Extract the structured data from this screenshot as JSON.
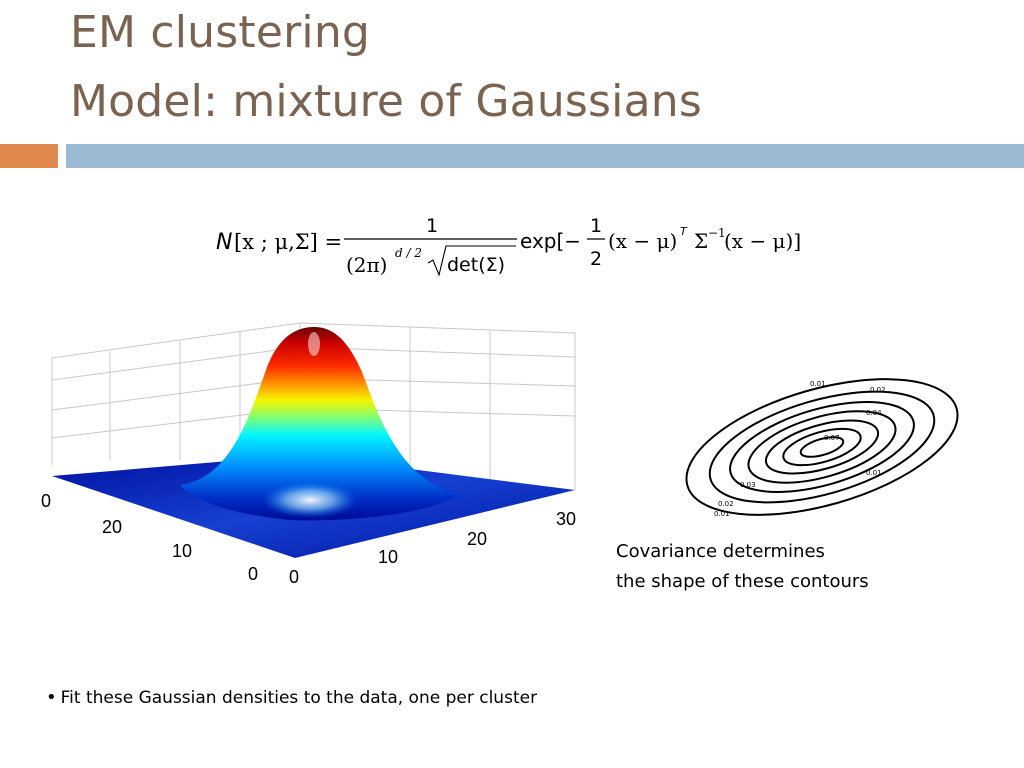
{
  "slide": {
    "title_line1": "EM clustering",
    "title_line2": "Model: mixture of Gaussians",
    "accent_colors": {
      "orange": "#df8a4c",
      "blue": "#9cbad3",
      "title": "#7a6350"
    }
  },
  "formula": {
    "lhs_N": "N",
    "lhs_args": "[x ; μ,Σ] =",
    "numerator": "1",
    "denominator_left": "(2π)",
    "denominator_exp": "d / 2",
    "denominator_det": "det(Σ)",
    "exp_word": "exp[−",
    "half_num": "1",
    "half_den": "2",
    "tail_a": "(x − μ)",
    "tail_T": "T",
    "tail_b": "Σ",
    "tail_inv": "−1",
    "tail_c": "(x − μ)]"
  },
  "surface_plot": {
    "tick_left_top": "0",
    "tick_left_20": "20",
    "tick_left_10": "10",
    "tick_left_0": "0",
    "tick_front_0": "0",
    "tick_front_10": "10",
    "tick_front_20": "20",
    "tick_front_30": "30"
  },
  "contour_plot": {
    "levels": [
      "0.01",
      "0.02",
      "0.03",
      "0.04",
      "0.05",
      "0.06",
      "0.07"
    ]
  },
  "caption": {
    "line1": "Covariance determines",
    "line2": "the shape of these contours"
  },
  "bullet": {
    "text": "Fit these Gaussian densities to the data, one per cluster"
  }
}
